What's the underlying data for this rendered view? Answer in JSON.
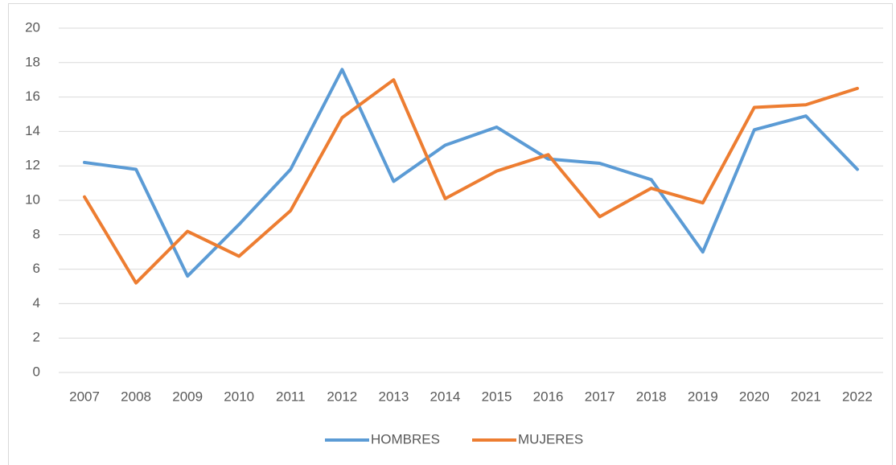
{
  "chart_data": {
    "type": "line",
    "categories": [
      "2007",
      "2008",
      "2009",
      "2010",
      "2011",
      "2012",
      "2013",
      "2014",
      "2015",
      "2016",
      "2017",
      "2018",
      "2019",
      "2020",
      "2021",
      "2022"
    ],
    "series": [
      {
        "name": "HOMBRES",
        "color": "#5b9bd5",
        "values": [
          12.2,
          11.8,
          5.6,
          8.6,
          11.8,
          17.6,
          11.1,
          13.2,
          14.25,
          12.4,
          12.15,
          11.2,
          7.0,
          14.1,
          14.9,
          11.8
        ]
      },
      {
        "name": "MUJERES",
        "color": "#ed7d31",
        "values": [
          10.2,
          5.2,
          8.2,
          6.75,
          9.4,
          14.8,
          17.0,
          10.1,
          11.7,
          12.65,
          9.05,
          10.7,
          9.85,
          15.4,
          15.55,
          16.5
        ]
      }
    ],
    "ylim": [
      0,
      20
    ],
    "yticks": [
      0,
      2,
      4,
      6,
      8,
      10,
      12,
      14,
      16,
      18,
      20
    ],
    "grid": true,
    "legend": "bottom"
  }
}
